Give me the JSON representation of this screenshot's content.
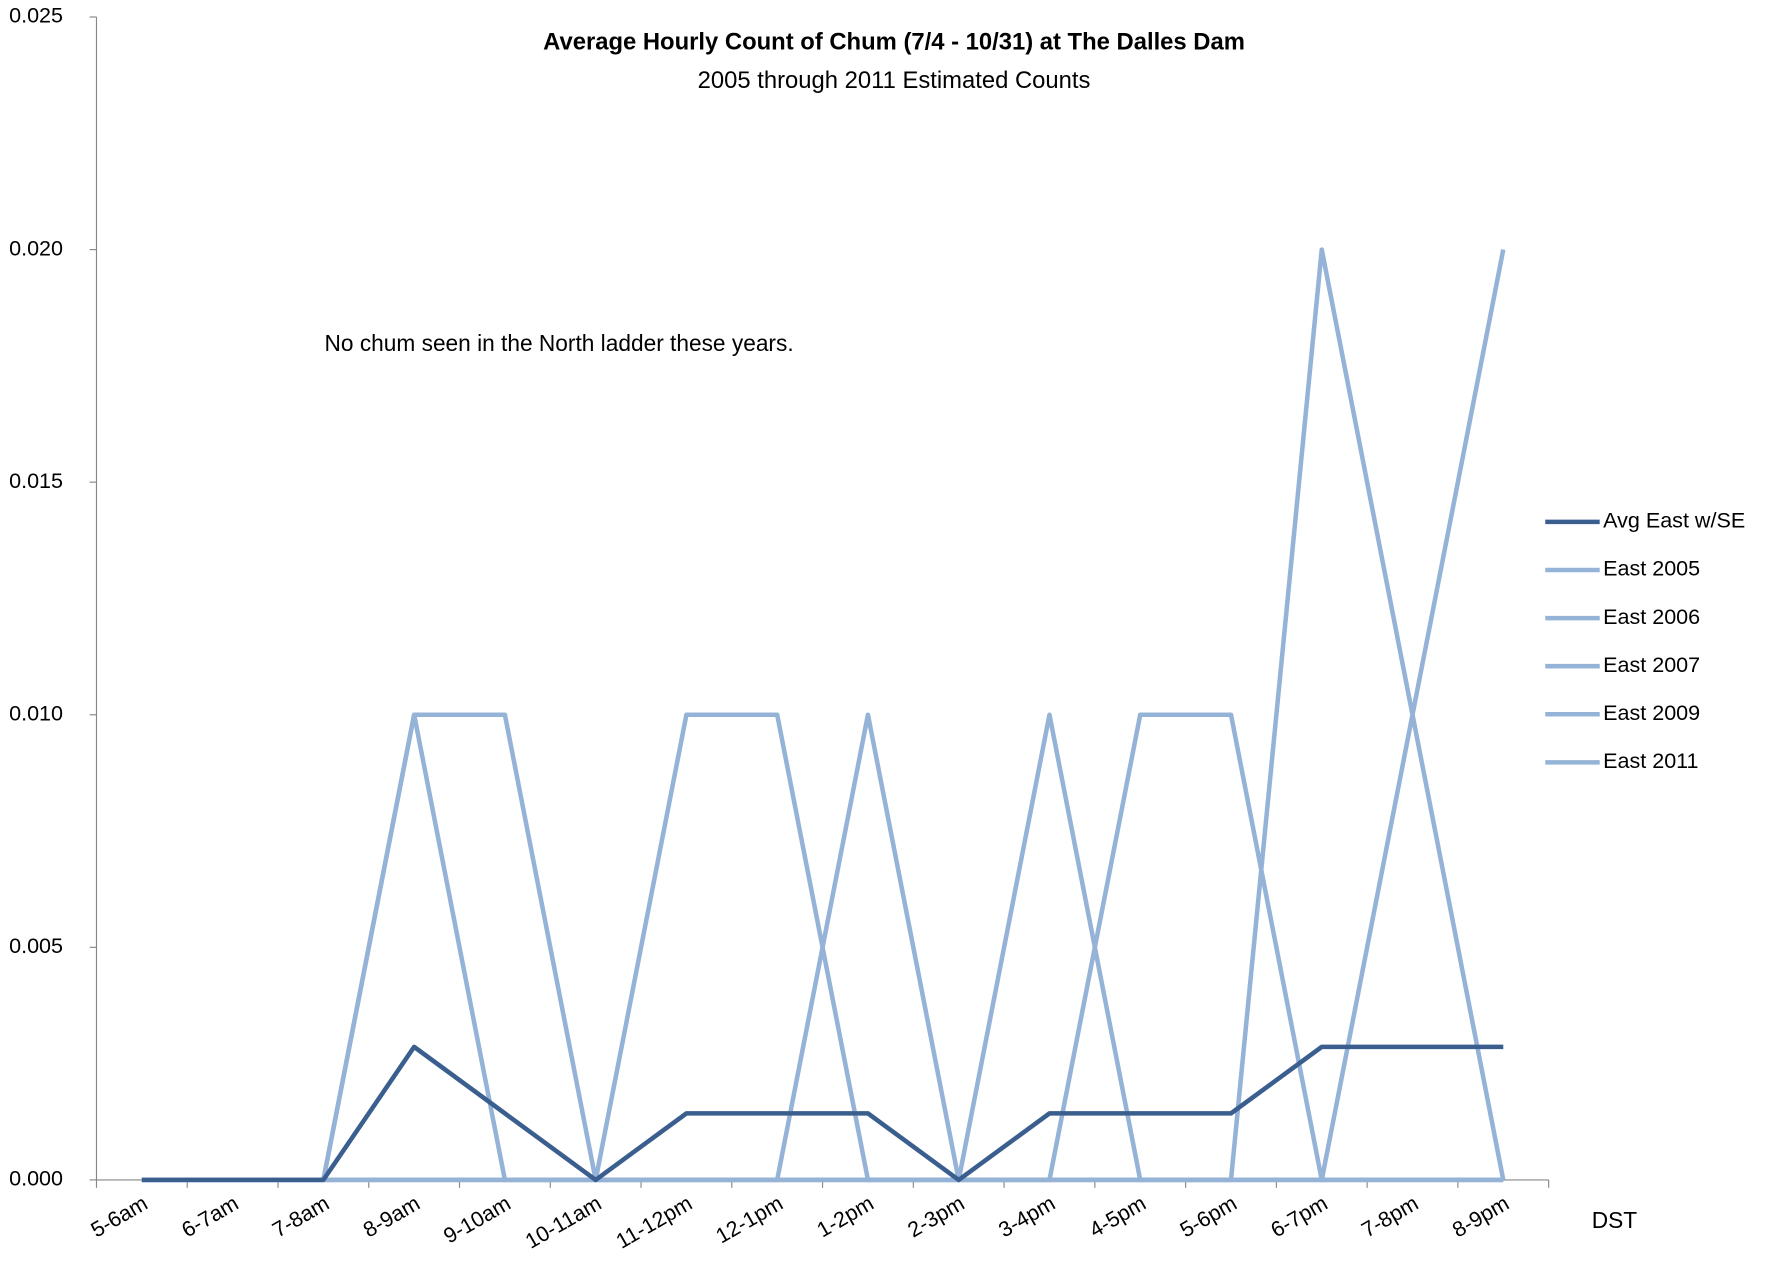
{
  "chart_data": {
    "type": "line",
    "title": "Average Hourly Count of Chum (7/4 - 10/31) at The Dalles Dam",
    "subtitle": "2005 through 2011 Estimated Counts",
    "annotation": "No chum seen in the North ladder these years.",
    "x_label": "DST",
    "categories": [
      "5-6am",
      "6-7am",
      "7-8am",
      "8-9am",
      "9-10am",
      "10-11am",
      "11-12pm",
      "12-1pm",
      "1-2pm",
      "2-3pm",
      "3-4pm",
      "4-5pm",
      "5-6pm",
      "6-7pm",
      "7-8pm",
      "8-9pm"
    ],
    "series": [
      {
        "name": "Avg East w/SE",
        "color": "#3a5f8e",
        "values": [
          0,
          0,
          0,
          0.00286,
          0.00143,
          0,
          0.00143,
          0.00143,
          0.00143,
          0,
          0.00143,
          0.00143,
          0.00143,
          0.00286,
          0.00286,
          0.00286
        ]
      },
      {
        "name": "East 2005",
        "color": "#95b3d7",
        "values": [
          0,
          0,
          0,
          0.01,
          0.01,
          0,
          0,
          0,
          0,
          0,
          0,
          0,
          0,
          0.02,
          0.01,
          0
        ]
      },
      {
        "name": "East 2006",
        "color": "#95b3d7",
        "values": [
          0,
          0,
          0,
          0.01,
          0,
          0,
          0.01,
          0.01,
          0,
          0,
          0,
          0,
          0,
          0,
          0,
          0
        ]
      },
      {
        "name": "East 2007",
        "color": "#95b3d7",
        "values": [
          0,
          0,
          0,
          0,
          0,
          0,
          0,
          0,
          0.01,
          0,
          0,
          0,
          0,
          0,
          0.01,
          0.02
        ]
      },
      {
        "name": "East 2009",
        "color": "#95b3d7",
        "values": [
          0,
          0,
          0,
          0,
          0,
          0,
          0,
          0,
          0,
          0,
          0.01,
          0,
          0,
          0,
          0,
          0
        ]
      },
      {
        "name": "East 2011",
        "color": "#95b3d7",
        "values": [
          0,
          0,
          0,
          0,
          0,
          0,
          0,
          0,
          0,
          0,
          0,
          0.01,
          0.01,
          0,
          0,
          0
        ]
      }
    ],
    "ylim": [
      0,
      0.025
    ],
    "yticks": [
      {
        "value": 0,
        "label": "0.000"
      },
      {
        "value": 0.005,
        "label": "0.005"
      },
      {
        "value": 0.01,
        "label": "0.010"
      },
      {
        "value": 0.015,
        "label": "0.015"
      },
      {
        "value": 0.02,
        "label": "0.020"
      },
      {
        "value": 0.025,
        "label": "0.025"
      }
    ],
    "legend": "right"
  }
}
